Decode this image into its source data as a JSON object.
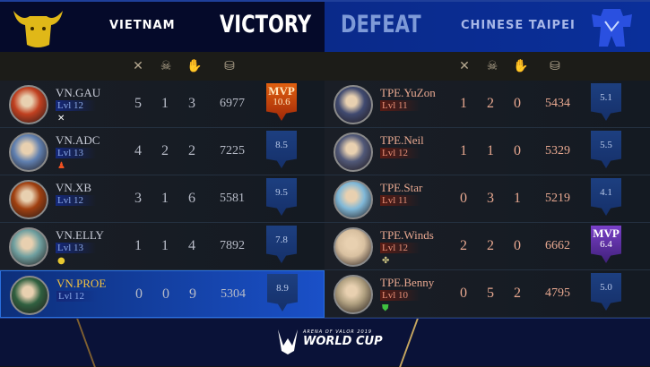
{
  "header": {
    "left_team": "VIETNAM",
    "left_result": "VICTORY",
    "right_team": "CHINESE TAIPEI",
    "right_result": "DEFEAT"
  },
  "columns": [
    "kills-icon",
    "deaths-icon",
    "assists-icon",
    "gold-icon"
  ],
  "colors": {
    "victory_bg": "#050a2a",
    "defeat_bg": "#0a2a8a",
    "mvp_win": "#e06010",
    "mvp_lose": "#7a40c8",
    "score_badge": "#1d3f80",
    "highlight": "#1a50c8"
  },
  "left_players": [
    {
      "name": "VN.GAU",
      "level": "Lvl 12",
      "k": "5",
      "d": "1",
      "a": "3",
      "gold": "6977",
      "score": "10.6",
      "mvp": "MVP",
      "spell": "x-icon",
      "avatar": "#c04020"
    },
    {
      "name": "VN.ADC",
      "level": "Lvl 13",
      "k": "4",
      "d": "2",
      "a": "2",
      "gold": "7225",
      "score": "8.5",
      "spell": "figure-icon",
      "avatar": "#6080b0"
    },
    {
      "name": "VN.XB",
      "level": "Lvl 12",
      "k": "3",
      "d": "1",
      "a": "6",
      "gold": "5581",
      "score": "9.5",
      "avatar": "#a04010"
    },
    {
      "name": "VN.ELLY",
      "level": "Lvl 13",
      "k": "1",
      "d": "1",
      "a": "4",
      "gold": "7892",
      "score": "7.8",
      "spell": "coin-icon",
      "avatar": "#70a0a0"
    },
    {
      "name": "VN.PROE",
      "level": "Lvl 12",
      "k": "0",
      "d": "0",
      "a": "9",
      "gold": "5304",
      "score": "8.9",
      "self": true,
      "avatar": "#306040"
    }
  ],
  "right_players": [
    {
      "name": "TPE.YuZon",
      "level": "Lvl 11",
      "k": "1",
      "d": "2",
      "a": "0",
      "gold": "5434",
      "score": "5.1",
      "avatar": "#404a70"
    },
    {
      "name": "TPE.Neil",
      "level": "Lvl 12",
      "k": "1",
      "d": "1",
      "a": "0",
      "gold": "5329",
      "score": "5.5",
      "avatar": "#505878"
    },
    {
      "name": "TPE.Star",
      "level": "Lvl 11",
      "k": "0",
      "d": "3",
      "a": "1",
      "gold": "5219",
      "score": "4.1",
      "avatar": "#80b8d8"
    },
    {
      "name": "TPE.Winds",
      "level": "Lvl 12",
      "k": "2",
      "d": "2",
      "a": "0",
      "gold": "6662",
      "score": "6.4",
      "mvp": "MVP",
      "spell": "crest-icon",
      "avatar": "#d8c0a0"
    },
    {
      "name": "TPE.Benny",
      "level": "Lvl 10",
      "k": "0",
      "d": "5",
      "a": "2",
      "gold": "4795",
      "score": "5.0",
      "spell": "shield-icon",
      "avatar": "#b0a080"
    }
  ],
  "footer": {
    "event_small": "ARENA OF VALOR 2019",
    "event_big": "WORLD CUP"
  }
}
